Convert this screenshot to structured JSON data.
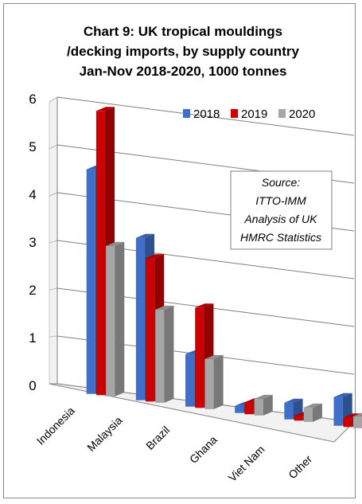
{
  "chart_data": {
    "type": "bar",
    "title_lines": [
      "Chart 9: UK tropical mouldings",
      "/decking imports, by supply country",
      "Jan-Nov 2018-2020, 1000 tonnes"
    ],
    "categories": [
      "Indonesia",
      "Malaysia",
      "Brazil",
      "Ghana",
      "Viet Nam",
      "Other"
    ],
    "series": [
      {
        "name": "2018",
        "color": "#3f6fc8",
        "values": [
          4.7,
          3.4,
          1.1,
          0.15,
          0.35,
          0.6
        ]
      },
      {
        "name": "2019",
        "color": "#cc0000",
        "values": [
          5.95,
          3.0,
          2.1,
          0.25,
          0.1,
          0.2
        ]
      },
      {
        "name": "2020",
        "color": "#a6a6a6",
        "values": [
          3.15,
          1.95,
          1.05,
          0.35,
          0.3,
          0.25
        ]
      }
    ],
    "y_ticks": [
      "0",
      "1",
      "2",
      "3",
      "4",
      "5",
      "6"
    ],
    "ylim": [
      0,
      6
    ],
    "grid": true,
    "legend_position": "top-right",
    "annotation": [
      "Source:",
      "ITTO-IMM",
      "Analysis of UK",
      "HMRC Statistics"
    ]
  }
}
